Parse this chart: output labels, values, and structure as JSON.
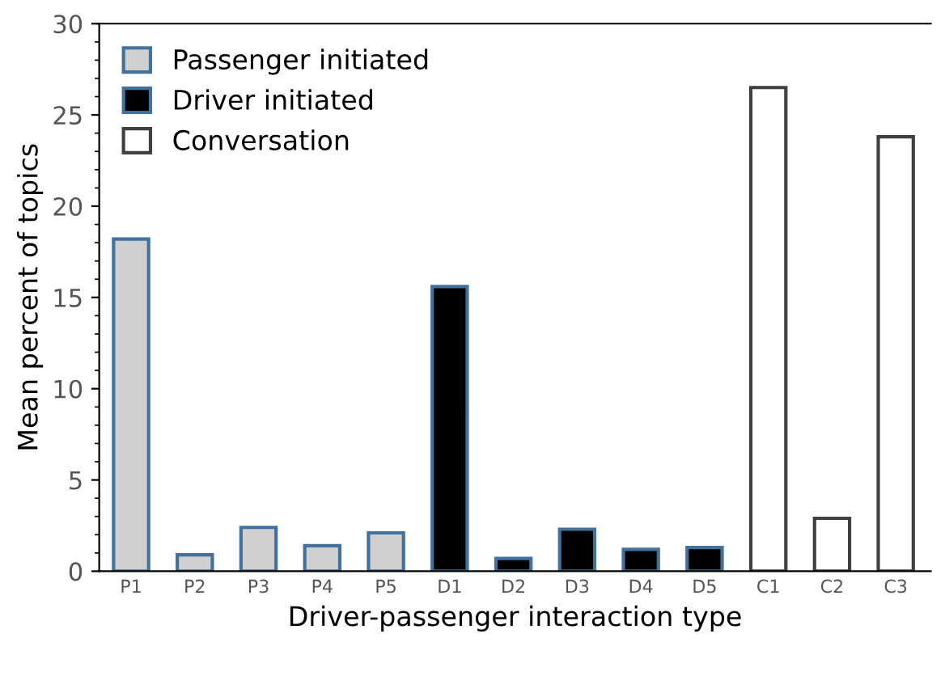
{
  "chart_data": {
    "type": "bar",
    "xlabel": "Driver-passenger interaction type",
    "ylabel": "Mean percent of topics",
    "categories": [
      "P1",
      "P2",
      "P3",
      "P4",
      "P5",
      "D1",
      "D2",
      "D3",
      "D4",
      "D5",
      "C1",
      "C2",
      "C3"
    ],
    "series": [
      {
        "name": "Passenger initiated",
        "color": "#d0d0d0",
        "values": [
          18.2,
          0.9,
          2.4,
          1.4,
          2.1,
          null,
          null,
          null,
          null,
          null,
          null,
          null,
          null
        ]
      },
      {
        "name": "Driver initiated",
        "color": "#000000",
        "values": [
          null,
          null,
          null,
          null,
          null,
          15.6,
          0.7,
          2.3,
          1.2,
          1.3,
          null,
          null,
          null
        ]
      },
      {
        "name": "Conversation",
        "color": "#ffffff",
        "values": [
          null,
          null,
          null,
          null,
          null,
          null,
          null,
          null,
          null,
          null,
          26.5,
          2.9,
          23.8
        ]
      }
    ],
    "ylim": [
      0,
      30
    ],
    "yticks": [
      0,
      5,
      10,
      15,
      20,
      25,
      30
    ],
    "grid": false,
    "legend": "top left"
  }
}
